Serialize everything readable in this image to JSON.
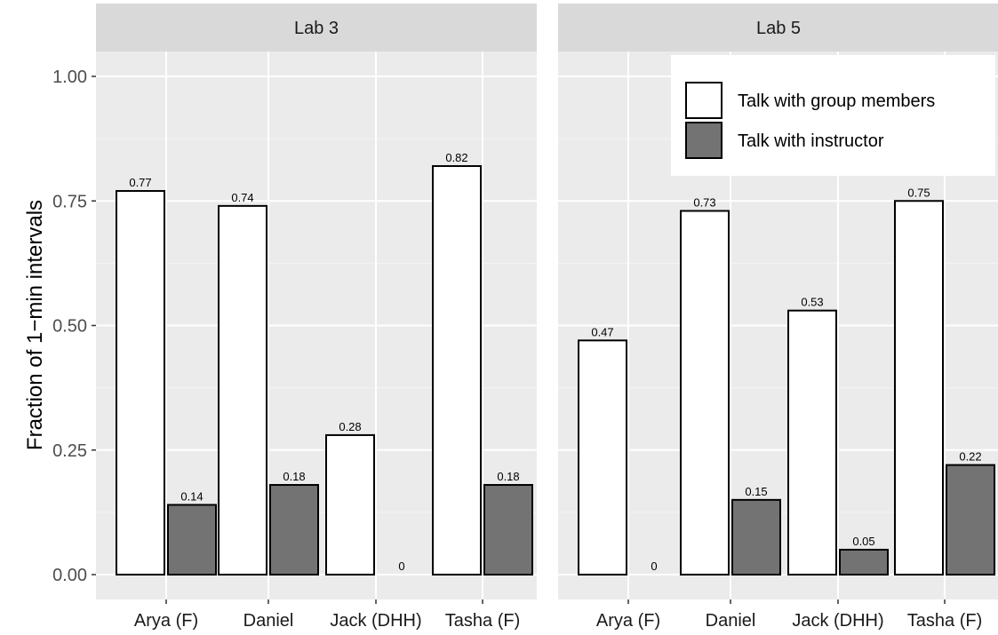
{
  "chart_data": {
    "type": "bar",
    "ylabel": "Fraction of 1−min intervals",
    "ylim": [
      0,
      1.05
    ],
    "y_ticks": [
      "0.00",
      "0.25",
      "0.50",
      "0.75",
      "1.00"
    ],
    "y_tick_values": [
      0,
      0.25,
      0.5,
      0.75,
      1.0
    ],
    "grid": true,
    "legend_position": "top-right",
    "categories": [
      "Arya (F)",
      "Daniel",
      "Jack (DHH)",
      "Tasha (F)"
    ],
    "series_info": [
      {
        "name": "Talk with group members",
        "color": "#ffffff"
      },
      {
        "name": "Talk with instructor",
        "color": "#737373"
      }
    ],
    "panels": [
      {
        "title": "Lab 3",
        "series": [
          {
            "name": "Talk with group members",
            "values": [
              0.77,
              0.74,
              0.28,
              0.82
            ],
            "labels": [
              "0.77",
              "0.74",
              "0.28",
              "0.82"
            ]
          },
          {
            "name": "Talk with instructor",
            "values": [
              0.14,
              0.18,
              0,
              0.18
            ],
            "labels": [
              "0.14",
              "0.18",
              "0",
              "0.18"
            ]
          }
        ]
      },
      {
        "title": "Lab 5",
        "series": [
          {
            "name": "Talk with group members",
            "values": [
              0.47,
              0.73,
              0.53,
              0.75
            ],
            "labels": [
              "0.47",
              "0.73",
              "0.53",
              "0.75"
            ]
          },
          {
            "name": "Talk with instructor",
            "values": [
              0,
              0.15,
              0.05,
              0.22
            ],
            "labels": [
              "0",
              "0.15",
              "0.05",
              "0.22"
            ]
          }
        ]
      }
    ]
  }
}
